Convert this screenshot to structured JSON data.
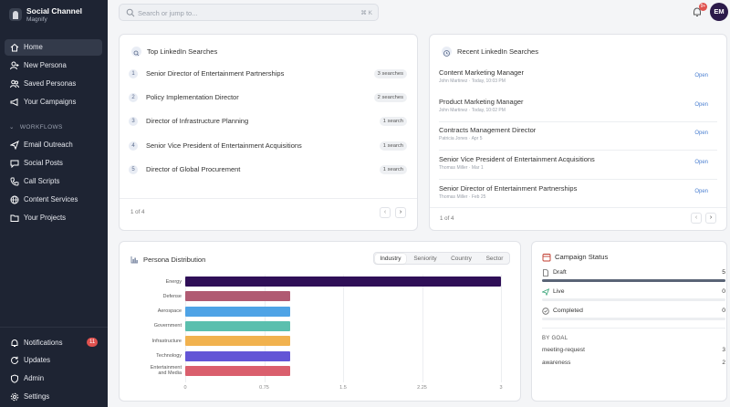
{
  "brand": {
    "name": "Social Channel",
    "subtitle": "Magnify"
  },
  "sidebar": {
    "items": [
      {
        "label": "Home",
        "icon": "home-icon"
      },
      {
        "label": "New Persona",
        "icon": "user-plus-icon"
      },
      {
        "label": "Saved Personas",
        "icon": "users-icon"
      },
      {
        "label": "Your Campaigns",
        "icon": "megaphone-icon"
      }
    ],
    "section_label": "WORKFLOWS",
    "workflows": [
      {
        "label": "Email Outreach",
        "icon": "send-icon"
      },
      {
        "label": "Social Posts",
        "icon": "chat-icon"
      },
      {
        "label": "Call Scripts",
        "icon": "phone-icon"
      },
      {
        "label": "Content Services",
        "icon": "globe-icon"
      },
      {
        "label": "Your Projects",
        "icon": "folder-icon"
      }
    ],
    "bottom": [
      {
        "label": "Notifications",
        "icon": "bell-icon",
        "badge": "11"
      },
      {
        "label": "Updates",
        "icon": "refresh-icon"
      },
      {
        "label": "Admin",
        "icon": "shield-icon"
      },
      {
        "label": "Settings",
        "icon": "gear-icon"
      }
    ]
  },
  "topbar": {
    "search_placeholder": "Search or jump to...",
    "shortcut": "⌘ K",
    "bell_badge": "9+",
    "avatar_initials": "EM"
  },
  "top_searches": {
    "title": "Top LinkedIn Searches",
    "rows": [
      {
        "n": "1",
        "title": "Senior Director of Entertainment Partnerships",
        "count": "3 searches"
      },
      {
        "n": "2",
        "title": "Policy Implementation Director",
        "count": "2 searches"
      },
      {
        "n": "3",
        "title": "Director of Infrastructure Planning",
        "count": "1 search"
      },
      {
        "n": "4",
        "title": "Senior Vice President of Entertainment Acquisitions",
        "count": "1 search"
      },
      {
        "n": "5",
        "title": "Director of Global Procurement",
        "count": "1 search"
      }
    ],
    "pagination": "1 of 4"
  },
  "recent_searches": {
    "title": "Recent LinkedIn Searches",
    "open_label": "Open",
    "rows": [
      {
        "title": "Content Marketing Manager",
        "meta": "John Martinez · Today, 10:03 PM"
      },
      {
        "title": "Product Marketing Manager",
        "meta": "John Martinez · Today, 10:02 PM"
      },
      {
        "title": "Contracts Management Director",
        "meta": "Patricia Jones · Apr 5"
      },
      {
        "title": "Senior Vice President of Entertainment Acquisitions",
        "meta": "Thomas Miller · Mar 1"
      },
      {
        "title": "Senior Director of Entertainment Partnerships",
        "meta": "Thomas Miller · Feb 25"
      }
    ],
    "pagination": "1 of 4"
  },
  "persona_distribution": {
    "title": "Persona Distribution",
    "tabs": [
      "Industry",
      "Seniority",
      "Country",
      "Sector"
    ],
    "active_tab": "Industry"
  },
  "chart_data": {
    "type": "bar",
    "orientation": "horizontal",
    "categories": [
      "Energy",
      "Defense",
      "Aerospace",
      "Government",
      "Infrastructure",
      "Technology",
      "Entertainment and Media"
    ],
    "category_labels": [
      [
        "Energy"
      ],
      [
        "Defense"
      ],
      [
        "Aerospace"
      ],
      [
        "Government"
      ],
      [
        "Infrastructure"
      ],
      [
        "Technology"
      ],
      [
        "Entertainment",
        "and Media"
      ]
    ],
    "values": [
      3,
      1,
      1,
      1,
      1,
      1,
      1
    ],
    "colors": [
      "#2f0f57",
      "#b05a72",
      "#4ea3e6",
      "#5bbfae",
      "#f1b24f",
      "#6355d6",
      "#da5f6d"
    ],
    "xlim": [
      0,
      3
    ],
    "xticks": [
      "0",
      "0.75",
      "1.5",
      "2.25",
      "3"
    ],
    "grid": true,
    "title": "",
    "xlabel": "",
    "ylabel": ""
  },
  "campaign_status": {
    "title": "Campaign Status",
    "total": 5,
    "rows": [
      {
        "label": "Draft",
        "count": 5,
        "icon": "file-icon"
      },
      {
        "label": "Live",
        "count": 0,
        "icon": "send-icon"
      },
      {
        "label": "Completed",
        "count": 0,
        "icon": "check-circle-icon"
      }
    ],
    "by_goal_label": "BY GOAL",
    "goals": [
      {
        "label": "meeting-request",
        "count": "3"
      },
      {
        "label": "awareness",
        "count": "2"
      }
    ]
  }
}
